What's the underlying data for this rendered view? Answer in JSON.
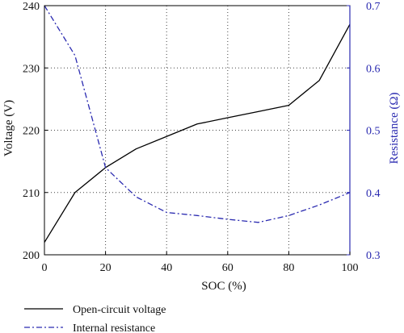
{
  "chart_data": {
    "type": "line",
    "xlabel": "SOC (%)",
    "ylabel": "Voltage (V)",
    "ylabel_right": "Resistance (Ω)",
    "xlim": [
      0,
      100
    ],
    "ylim": [
      200,
      240
    ],
    "ylim_right": [
      0.3,
      0.7
    ],
    "x_ticks": [
      "0",
      "20",
      "40",
      "60",
      "80",
      "100"
    ],
    "y_ticks": [
      "200",
      "210",
      "220",
      "230",
      "240"
    ],
    "y_ticks_right": [
      "0.3",
      "0.4",
      "0.5",
      "0.6",
      "0.7"
    ],
    "grid": true,
    "legend_position": "bottom",
    "series": [
      {
        "name": "Open-circuit voltage",
        "axis": "left",
        "color": "#000000",
        "style": "solid",
        "x": [
          0,
          10,
          20,
          30,
          40,
          50,
          60,
          70,
          80,
          90,
          100
        ],
        "y": [
          202,
          210,
          214,
          217,
          219,
          221,
          222,
          223,
          224,
          228,
          237
        ]
      },
      {
        "name": "Internal resistance",
        "axis": "right",
        "color": "#2a2ab0",
        "style": "dashdot",
        "x": [
          0,
          10,
          20,
          30,
          40,
          50,
          60,
          70,
          80,
          90,
          100
        ],
        "y": [
          0.7,
          0.62,
          0.44,
          0.393,
          0.368,
          0.363,
          0.357,
          0.352,
          0.363,
          0.38,
          0.4
        ]
      }
    ]
  }
}
